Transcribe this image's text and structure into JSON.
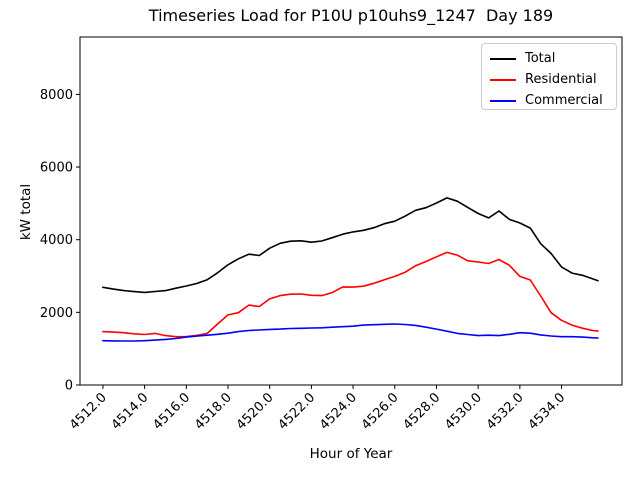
{
  "chart_data": {
    "type": "line",
    "title": "Timeseries Load for P10U p10uhs9_1247  Day 189",
    "xlabel": "Hour of Year",
    "ylabel": "kW total",
    "grid": false,
    "legend_position": "upper right",
    "xlim": [
      4510.9,
      4536.9
    ],
    "ylim": [
      0,
      9580
    ],
    "xticks": {
      "values": [
        4512,
        4514,
        4516,
        4518,
        4520,
        4522,
        4524,
        4526,
        4528,
        4530,
        4532,
        4534
      ],
      "labels": [
        "4512.0",
        "4514.0",
        "4516.0",
        "4518.0",
        "4520.0",
        "4522.0",
        "4524.0",
        "4526.0",
        "4528.0",
        "4530.0",
        "4532.0",
        "4534.0"
      ]
    },
    "yticks": {
      "values": [
        0,
        2000,
        4000,
        6000,
        8000
      ],
      "labels": [
        "0",
        "2000",
        "4000",
        "6000",
        "8000"
      ]
    },
    "x": [
      4512.0,
      4512.5,
      4513.0,
      4513.5,
      4514.0,
      4514.5,
      4515.0,
      4515.5,
      4516.0,
      4516.5,
      4517.0,
      4517.5,
      4518.0,
      4518.5,
      4519.0,
      4519.5,
      4520.0,
      4520.5,
      4521.0,
      4521.5,
      4522.0,
      4522.5,
      4523.0,
      4523.5,
      4524.0,
      4524.5,
      4525.0,
      4525.5,
      4526.0,
      4526.5,
      4527.0,
      4527.5,
      4528.0,
      4528.5,
      4529.0,
      4529.5,
      4530.0,
      4530.5,
      4531.0,
      4531.5,
      4532.0,
      4532.5,
      4533.0,
      4533.5,
      4534.0,
      4534.5,
      4535.0,
      4535.5,
      4535.75
    ],
    "series": [
      {
        "name": "Total",
        "color": "#000000",
        "values": [
          2690,
          2640,
          2600,
          2570,
          2550,
          2575,
          2600,
          2665,
          2725,
          2795,
          2900,
          3090,
          3310,
          3475,
          3600,
          3565,
          3765,
          3900,
          3960,
          3970,
          3930,
          3965,
          4055,
          4150,
          4215,
          4260,
          4330,
          4440,
          4510,
          4650,
          4810,
          4880,
          5010,
          5150,
          5060,
          4890,
          4720,
          4600,
          4790,
          4560,
          4460,
          4320,
          3890,
          3620,
          3250,
          3080,
          3020,
          2920,
          2870
        ]
      },
      {
        "name": "Residential",
        "color": "#ff0000",
        "values": [
          1470,
          1455,
          1440,
          1410,
          1390,
          1420,
          1360,
          1330,
          1335,
          1365,
          1420,
          1680,
          1930,
          1990,
          2200,
          2160,
          2370,
          2460,
          2500,
          2505,
          2470,
          2460,
          2545,
          2700,
          2695,
          2720,
          2800,
          2895,
          2990,
          3105,
          3285,
          3400,
          3530,
          3650,
          3575,
          3420,
          3385,
          3345,
          3455,
          3295,
          2990,
          2890,
          2450,
          1990,
          1780,
          1650,
          1565,
          1500,
          1485
        ]
      },
      {
        "name": "Commercial",
        "color": "#0000ff",
        "values": [
          1220,
          1215,
          1210,
          1210,
          1220,
          1235,
          1255,
          1280,
          1320,
          1345,
          1370,
          1395,
          1425,
          1470,
          1500,
          1515,
          1530,
          1540,
          1555,
          1560,
          1570,
          1575,
          1590,
          1605,
          1620,
          1650,
          1660,
          1672,
          1680,
          1665,
          1640,
          1590,
          1540,
          1480,
          1420,
          1390,
          1360,
          1372,
          1360,
          1395,
          1440,
          1425,
          1380,
          1350,
          1330,
          1330,
          1320,
          1300,
          1295
        ]
      }
    ]
  }
}
